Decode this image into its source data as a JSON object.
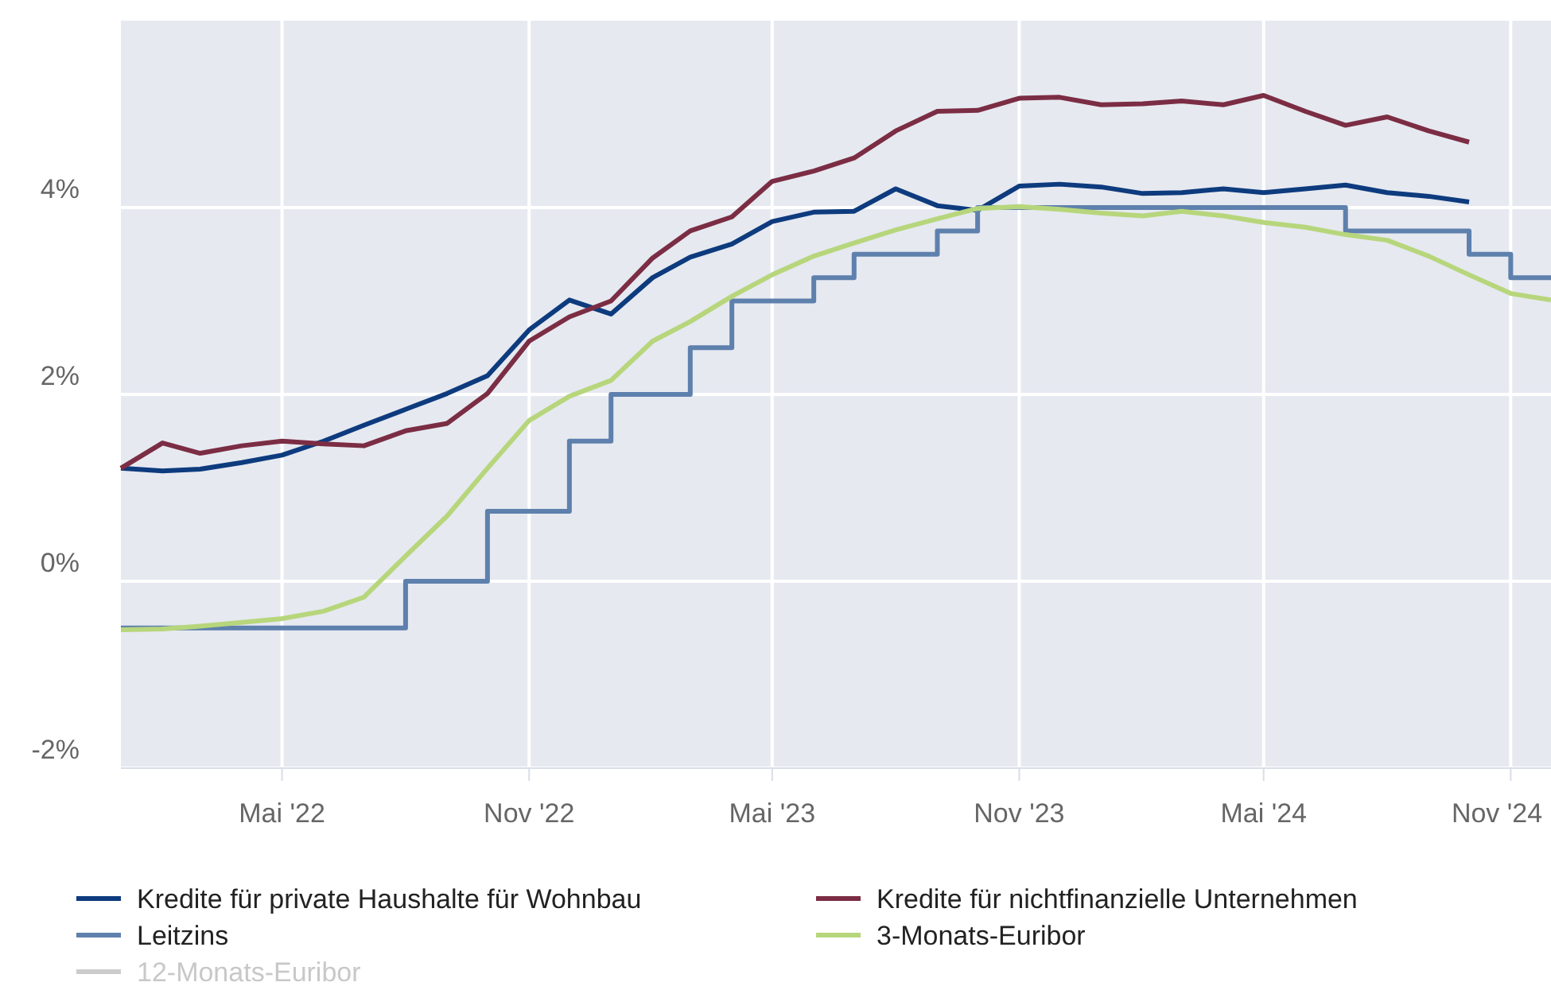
{
  "chart_data": {
    "type": "line",
    "x": [
      "2022-01",
      "2022-02",
      "2022-03",
      "2022-04",
      "2022-05",
      "2022-06",
      "2022-07",
      "2022-08",
      "2022-09",
      "2022-10",
      "2022-11",
      "2022-12",
      "2023-01",
      "2023-02",
      "2023-03",
      "2023-04",
      "2023-05",
      "2023-06",
      "2023-07",
      "2023-08",
      "2023-09",
      "2023-10",
      "2023-11",
      "2023-12",
      "2024-01",
      "2024-02",
      "2024-03",
      "2024-04",
      "2024-05",
      "2024-06",
      "2024-07",
      "2024-08",
      "2024-09",
      "2024-10",
      "2024-11",
      "2024-12"
    ],
    "series": [
      {
        "name": "Kredite für private Haushalte für Wohnbau",
        "color": "#0d3b7e",
        "values": [
          1.21,
          1.18,
          1.2,
          1.27,
          1.35,
          1.5,
          1.67,
          1.84,
          2.01,
          2.2,
          2.69,
          3.01,
          2.86,
          3.25,
          3.47,
          3.61,
          3.85,
          3.95,
          3.96,
          4.2,
          4.02,
          3.97,
          4.23,
          4.25,
          4.22,
          4.15,
          4.16,
          4.2,
          4.16,
          4.2,
          4.24,
          4.16,
          4.12,
          4.06,
          null,
          null
        ]
      },
      {
        "name": "Kredite für nichtfinanzielle Unternehmen",
        "color": "#7b2d44",
        "values": [
          1.21,
          1.48,
          1.37,
          1.45,
          1.5,
          1.47,
          1.45,
          1.61,
          1.69,
          2.01,
          2.57,
          2.83,
          3.0,
          3.46,
          3.75,
          3.9,
          4.28,
          4.39,
          4.53,
          4.82,
          5.03,
          5.04,
          5.17,
          5.18,
          5.1,
          5.11,
          5.14,
          5.1,
          5.2,
          5.03,
          4.88,
          4.97,
          4.82,
          4.7,
          null,
          null
        ]
      },
      {
        "name": "Leitzins",
        "type": "step",
        "color": "#5e80ad",
        "values": [
          -0.5,
          -0.5,
          -0.5,
          -0.5,
          -0.5,
          -0.5,
          -0.5,
          0,
          0,
          0.75,
          0.75,
          1.5,
          2.0,
          2.0,
          2.5,
          3.0,
          3.0,
          3.25,
          3.5,
          3.5,
          3.75,
          4.0,
          4.0,
          4.0,
          4.0,
          4.0,
          4.0,
          4.0,
          4.0,
          4.0,
          3.75,
          3.75,
          3.75,
          3.5,
          3.25,
          3.25
        ]
      },
      {
        "name": "3-Monats-Euribor",
        "color": "#b7d67c",
        "values": [
          -0.52,
          -0.51,
          -0.48,
          -0.44,
          -0.4,
          -0.32,
          -0.17,
          0.27,
          0.7,
          1.21,
          1.72,
          1.98,
          2.15,
          2.57,
          2.78,
          3.05,
          3.28,
          3.48,
          3.62,
          3.76,
          3.88,
          3.99,
          4.01,
          3.98,
          3.94,
          3.91,
          3.96,
          3.91,
          3.84,
          3.79,
          3.71,
          3.65,
          3.48,
          3.28,
          3.08,
          3.01
        ]
      },
      {
        "name": "12-Monats-Euribor",
        "color": "#cccccc",
        "values": [
          null,
          null,
          null,
          null,
          null,
          null,
          null,
          null,
          null,
          null,
          null,
          null,
          null,
          null,
          null,
          null,
          null,
          null,
          null,
          null,
          null,
          null,
          null,
          null,
          null,
          null,
          null,
          null,
          null,
          null,
          null,
          null,
          null,
          null,
          null,
          null
        ]
      }
    ],
    "xlim": [
      "2022-01-01",
      "2024-12-01"
    ],
    "xticks": [
      {
        "value": "2022-05-01",
        "label": "Mai '22"
      },
      {
        "value": "2022-11-01",
        "label": "Nov '22"
      },
      {
        "value": "2023-05-01",
        "label": "Mai '23"
      },
      {
        "value": "2023-11-01",
        "label": "Nov '23"
      },
      {
        "value": "2024-05-01",
        "label": "Mai '24"
      },
      {
        "value": "2024-11-01",
        "label": "Nov '24"
      }
    ],
    "ylim": [
      -2,
      6
    ],
    "yticks": [
      {
        "value": -2,
        "label": "-2%"
      },
      {
        "value": 0,
        "label": "0%"
      },
      {
        "value": 2,
        "label": "2%"
      },
      {
        "value": 4,
        "label": "4%"
      }
    ],
    "grid": true,
    "legend": "bottom",
    "line_style": "solid"
  }
}
